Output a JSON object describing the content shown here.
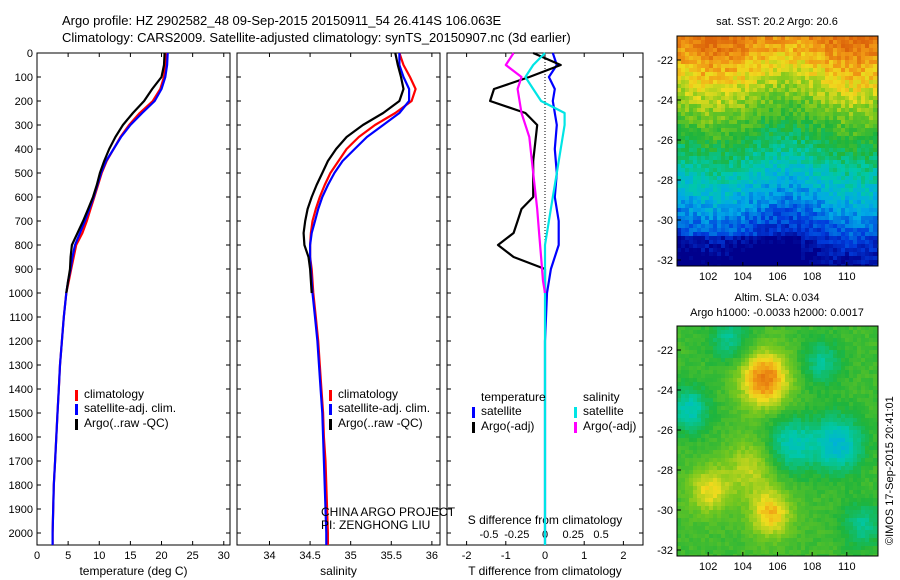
{
  "header": {
    "line1": "Argo profile: HZ 2902582_48 09-Sep-2015 20150911_54 26.414S 106.063E",
    "line2": "Climatology: CARS2009. Satellite-adjusted climatology: synTS_20150907.nc (3d earlier)"
  },
  "side_credit": "©IMOS 17-Sep-2015 20:41:01",
  "project_note": [
    "CHINA ARGO PROJECT",
    "PI: ZENGHONG LIU"
  ],
  "colors": {
    "climatology": "#ff0000",
    "satellite": "#0000ff",
    "argo": "#000000",
    "sal_satellite": "#00e5e5",
    "sal_argo": "#ff00ff"
  },
  "chart_data": [
    {
      "id": "temperature",
      "type": "line",
      "xlabel": "temperature (deg C)",
      "xlim": [
        0,
        31
      ],
      "xticks": [
        0,
        5,
        10,
        15,
        20,
        25,
        30
      ],
      "ylim": [
        0,
        2050
      ],
      "yticks": [
        0,
        100,
        200,
        300,
        400,
        500,
        600,
        700,
        800,
        900,
        1000,
        1100,
        1200,
        1300,
        1400,
        1500,
        1600,
        1700,
        1800,
        1900,
        2000
      ],
      "legend": [
        "climatology",
        "satellite-adj. clim.",
        "Argo(..raw -QC)"
      ],
      "series": [
        {
          "name": "climatology",
          "color": "#ff0000",
          "points": [
            [
              20.7,
              0
            ],
            [
              20.6,
              50
            ],
            [
              20.4,
              100
            ],
            [
              19.8,
              150
            ],
            [
              18.6,
              200
            ],
            [
              16.5,
              250
            ],
            [
              14.8,
              300
            ],
            [
              13.4,
              350
            ],
            [
              12.3,
              400
            ],
            [
              11.2,
              450
            ],
            [
              10.4,
              500
            ],
            [
              9.8,
              550
            ],
            [
              9.2,
              600
            ],
            [
              8.6,
              650
            ],
            [
              8.0,
              700
            ],
            [
              7.3,
              750
            ],
            [
              6.3,
              800
            ],
            [
              5.9,
              850
            ],
            [
              5.5,
              900
            ],
            [
              5.1,
              950
            ],
            [
              4.7,
              1000
            ],
            [
              4.3,
              1100
            ],
            [
              4.0,
              1200
            ],
            [
              3.7,
              1300
            ],
            [
              3.5,
              1400
            ],
            [
              3.3,
              1500
            ],
            [
              3.1,
              1600
            ],
            [
              2.9,
              1700
            ],
            [
              2.7,
              1800
            ],
            [
              2.6,
              1900
            ],
            [
              2.5,
              2000
            ],
            [
              2.5,
              2050
            ]
          ]
        },
        {
          "name": "satellite-adj. clim.",
          "color": "#0000ff",
          "points": [
            [
              21.0,
              0
            ],
            [
              20.9,
              50
            ],
            [
              20.6,
              100
            ],
            [
              20.0,
              150
            ],
            [
              18.9,
              200
            ],
            [
              16.9,
              250
            ],
            [
              15.0,
              300
            ],
            [
              13.5,
              350
            ],
            [
              12.3,
              400
            ],
            [
              11.1,
              450
            ],
            [
              10.3,
              500
            ],
            [
              9.7,
              550
            ],
            [
              9.1,
              600
            ],
            [
              8.4,
              650
            ],
            [
              7.7,
              700
            ],
            [
              6.9,
              750
            ],
            [
              6.1,
              800
            ],
            [
              5.7,
              850
            ],
            [
              5.4,
              900
            ],
            [
              5.0,
              950
            ],
            [
              4.7,
              1000
            ],
            [
              4.3,
              1100
            ],
            [
              4.0,
              1200
            ],
            [
              3.7,
              1300
            ],
            [
              3.5,
              1400
            ],
            [
              3.3,
              1500
            ],
            [
              3.1,
              1600
            ],
            [
              2.9,
              1700
            ],
            [
              2.7,
              1800
            ],
            [
              2.6,
              1900
            ],
            [
              2.5,
              2000
            ],
            [
              2.5,
              2050
            ]
          ]
        },
        {
          "name": "Argo(..raw -QC)",
          "color": "#000000",
          "points": [
            [
              20.5,
              0
            ],
            [
              20.4,
              50
            ],
            [
              20.0,
              100
            ],
            [
              18.5,
              150
            ],
            [
              17.2,
              200
            ],
            [
              15.4,
              250
            ],
            [
              13.8,
              300
            ],
            [
              12.6,
              350
            ],
            [
              11.6,
              400
            ],
            [
              10.8,
              450
            ],
            [
              10.1,
              500
            ],
            [
              9.6,
              550
            ],
            [
              9.0,
              600
            ],
            [
              8.2,
              650
            ],
            [
              7.4,
              700
            ],
            [
              6.5,
              750
            ],
            [
              5.6,
              800
            ],
            [
              5.4,
              850
            ],
            [
              5.3,
              900
            ],
            [
              5.0,
              950
            ],
            [
              4.7,
              1000
            ]
          ]
        }
      ]
    },
    {
      "id": "salinity",
      "type": "line",
      "xlabel": "salinity",
      "xlim": [
        33.6,
        36.1
      ],
      "xticks": [
        34,
        34.5,
        35,
        35.5,
        36
      ],
      "ylim": [
        0,
        2050
      ],
      "legend": [
        "climatology",
        "satellite-adj. clim.",
        "Argo(..raw -QC)"
      ],
      "series": [
        {
          "name": "climatology",
          "color": "#ff0000",
          "points": [
            [
              35.6,
              0
            ],
            [
              35.65,
              50
            ],
            [
              35.73,
              100
            ],
            [
              35.8,
              150
            ],
            [
              35.75,
              200
            ],
            [
              35.55,
              250
            ],
            [
              35.3,
              300
            ],
            [
              35.1,
              350
            ],
            [
              34.95,
              400
            ],
            [
              34.85,
              450
            ],
            [
              34.75,
              500
            ],
            [
              34.68,
              550
            ],
            [
              34.62,
              600
            ],
            [
              34.57,
              650
            ],
            [
              34.53,
              700
            ],
            [
              34.51,
              750
            ],
            [
              34.5,
              800
            ],
            [
              34.5,
              850
            ],
            [
              34.52,
              900
            ],
            [
              34.54,
              1000
            ],
            [
              34.57,
              1100
            ],
            [
              34.6,
              1200
            ],
            [
              34.62,
              1300
            ],
            [
              34.64,
              1400
            ],
            [
              34.66,
              1500
            ],
            [
              34.67,
              1600
            ],
            [
              34.69,
              1700
            ],
            [
              34.7,
              1800
            ],
            [
              34.71,
              1900
            ],
            [
              34.72,
              2000
            ],
            [
              34.72,
              2050
            ]
          ]
        },
        {
          "name": "satellite-adj. clim.",
          "color": "#0000ff",
          "points": [
            [
              35.6,
              0
            ],
            [
              35.6,
              50
            ],
            [
              35.65,
              100
            ],
            [
              35.72,
              150
            ],
            [
              35.72,
              200
            ],
            [
              35.6,
              250
            ],
            [
              35.4,
              300
            ],
            [
              35.2,
              350
            ],
            [
              35.05,
              400
            ],
            [
              34.9,
              450
            ],
            [
              34.8,
              500
            ],
            [
              34.72,
              550
            ],
            [
              34.65,
              600
            ],
            [
              34.6,
              650
            ],
            [
              34.56,
              700
            ],
            [
              34.52,
              750
            ],
            [
              34.5,
              800
            ],
            [
              34.5,
              850
            ],
            [
              34.51,
              900
            ],
            [
              34.53,
              1000
            ],
            [
              34.56,
              1100
            ],
            [
              34.59,
              1200
            ],
            [
              34.61,
              1300
            ],
            [
              34.63,
              1400
            ],
            [
              34.65,
              1500
            ],
            [
              34.66,
              1600
            ],
            [
              34.67,
              1700
            ],
            [
              34.68,
              1800
            ],
            [
              34.69,
              1900
            ],
            [
              34.7,
              2000
            ],
            [
              34.7,
              2050
            ]
          ]
        },
        {
          "name": "Argo(..raw -QC)",
          "color": "#000000",
          "points": [
            [
              35.55,
              0
            ],
            [
              35.58,
              50
            ],
            [
              35.62,
              100
            ],
            [
              35.65,
              150
            ],
            [
              35.6,
              200
            ],
            [
              35.4,
              250
            ],
            [
              35.15,
              300
            ],
            [
              34.95,
              350
            ],
            [
              34.82,
              400
            ],
            [
              34.72,
              450
            ],
            [
              34.65,
              500
            ],
            [
              34.58,
              550
            ],
            [
              34.52,
              600
            ],
            [
              34.47,
              650
            ],
            [
              34.44,
              700
            ],
            [
              34.42,
              750
            ],
            [
              34.43,
              800
            ],
            [
              34.48,
              850
            ],
            [
              34.5,
              900
            ],
            [
              34.52,
              1000
            ]
          ]
        }
      ]
    },
    {
      "id": "differences",
      "type": "line",
      "xlabel": "T difference from climatology",
      "xlim": [
        -2.5,
        2.5
      ],
      "xticks": [
        -2,
        -1,
        0,
        1,
        2
      ],
      "top_label": "S difference from climatology",
      "top_ticks": [
        "-0.5",
        "-0.25",
        "0",
        "0.25",
        "0.5"
      ],
      "ylim": [
        0,
        2050
      ],
      "legend_left_title": "temperature",
      "legend_right_title": "salinity",
      "legend": [
        "satellite",
        "Argo(-adj)",
        "satellite",
        "Argo(-adj)"
      ],
      "series": [
        {
          "name": "satellite",
          "group": "temperature",
          "color": "#0000ff",
          "points": [
            [
              0.2,
              0
            ],
            [
              0.3,
              50
            ],
            [
              0.1,
              100
            ],
            [
              0.25,
              150
            ],
            [
              0.2,
              200
            ],
            [
              0.3,
              300
            ],
            [
              0.25,
              400
            ],
            [
              0.3,
              500
            ],
            [
              0.25,
              600
            ],
            [
              0.35,
              700
            ],
            [
              0.35,
              800
            ],
            [
              0.15,
              900
            ],
            [
              0.05,
              1000
            ],
            [
              0.0,
              1200
            ],
            [
              0.0,
              2050
            ]
          ]
        },
        {
          "name": "Argo(-adj)",
          "group": "temperature",
          "color": "#000000",
          "points": [
            [
              -0.3,
              0
            ],
            [
              0.4,
              50
            ],
            [
              -0.4,
              100
            ],
            [
              -1.3,
              150
            ],
            [
              -1.4,
              200
            ],
            [
              -0.5,
              250
            ],
            [
              -0.2,
              300
            ],
            [
              -0.3,
              450
            ],
            [
              -0.3,
              600
            ],
            [
              -0.6,
              650
            ],
            [
              -0.7,
              700
            ],
            [
              -0.8,
              750
            ],
            [
              -1.2,
              800
            ],
            [
              -0.8,
              850
            ],
            [
              0.0,
              900
            ],
            [
              0.0,
              1000
            ]
          ]
        },
        {
          "name": "satellite",
          "group": "salinity",
          "color": "#00e5e5",
          "points": [
            [
              0.0,
              0
            ],
            [
              -0.3,
              50
            ],
            [
              -0.5,
              100
            ],
            [
              -0.3,
              150
            ],
            [
              -0.1,
              200
            ],
            [
              0.5,
              250
            ],
            [
              0.5,
              300
            ],
            [
              0.4,
              400
            ],
            [
              0.3,
              500
            ],
            [
              0.2,
              600
            ],
            [
              0.1,
              700
            ],
            [
              0.0,
              800
            ],
            [
              0.0,
              900
            ],
            [
              0.0,
              1000
            ],
            [
              0.0,
              1100
            ],
            [
              0.0,
              2050
            ]
          ]
        },
        {
          "name": "Argo(-adj)",
          "group": "salinity",
          "color": "#ff00ff",
          "points": [
            [
              -0.8,
              0
            ],
            [
              -1.0,
              50
            ],
            [
              -0.6,
              100
            ],
            [
              -0.7,
              150
            ],
            [
              -0.6,
              250
            ],
            [
              -0.4,
              350
            ],
            [
              -0.3,
              500
            ],
            [
              -0.2,
              650
            ],
            [
              -0.15,
              750
            ],
            [
              -0.1,
              850
            ],
            [
              -0.05,
              950
            ],
            [
              0.0,
              1000
            ]
          ]
        }
      ]
    },
    {
      "id": "sst_map",
      "type": "heatmap",
      "title": "sat. SST: 20.2  Argo: 20.6",
      "xticks": [
        102,
        104,
        106,
        108,
        110
      ],
      "yticks": [
        -22,
        -24,
        -26,
        -28,
        -30,
        -32
      ],
      "xlim": [
        100.2,
        111.8
      ],
      "ylim": [
        -32.3,
        -20.8
      ]
    },
    {
      "id": "sla_map",
      "type": "heatmap",
      "title_line1": "Altim. SLA: 0.034",
      "title_line2": "Argo h1000: -0.0033  h2000: 0.0017",
      "xticks": [
        102,
        104,
        106,
        108,
        110
      ],
      "yticks": [
        -22,
        -24,
        -26,
        -28,
        -30,
        -32
      ],
      "xlim": [
        100.2,
        111.8
      ],
      "ylim": [
        -32.3,
        -20.8
      ]
    }
  ]
}
